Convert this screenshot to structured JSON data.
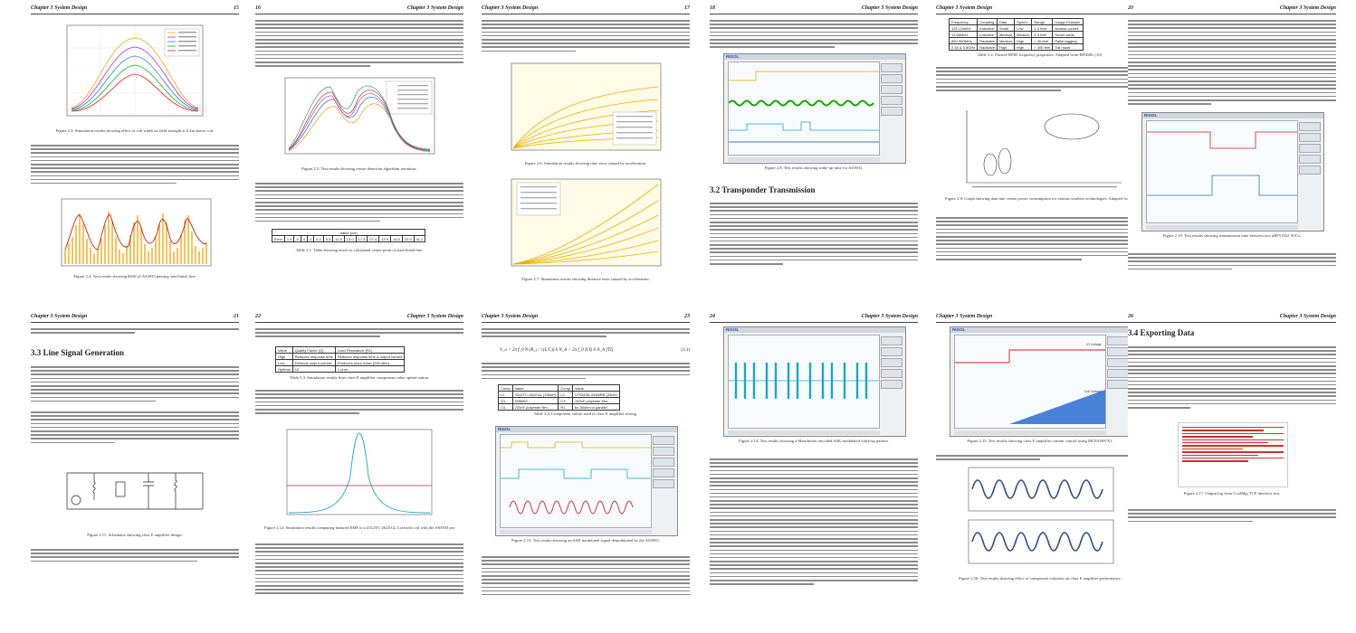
{
  "pages": [
    {
      "chapter": "Chapter 3 System Design",
      "number": "15",
      "figures": [
        {
          "id": "fig-2-3",
          "caption": "Figure 2.3: Simulation results showing effect of coil width on field strength at 0.4m above coil."
        },
        {
          "id": "fig-2-4",
          "caption": "Figure 2.4: Test results showing RSSI of AS3933 passing start/finish line."
        }
      ]
    },
    {
      "chapter": "16",
      "number": "Chapter 3 System Design",
      "figures": [
        {
          "id": "fig-2-5",
          "caption": "Figure 2.5: Test results showing centre detection algorithm iterations."
        }
      ],
      "table": {
        "header": [
          "Value (cm)"
        ],
        "row_label": "Error",
        "values": [
          "1.4",
          "4",
          "4",
          "4",
          "5.2",
          "5.5",
          "11.5",
          "13.0",
          "17.3",
          "27.4",
          "13.9",
          "14.5",
          "22.5",
          "41.2"
        ]
      },
      "table_caption": "Table 3.1: Table showing errors in calculated centre point of start/finish line."
    },
    {
      "chapter": "Chapter 3 System Design",
      "number": "17",
      "figures": [
        {
          "id": "fig-2-6",
          "caption": "Figure 2.6: Simulation results showing time error caused by acceleration."
        },
        {
          "id": "fig-2-7",
          "caption": "Figure 2.7: Simulation results showing distance error caused by acceleration."
        }
      ]
    },
    {
      "chapter": "18",
      "number": "Chapter 3 System Design",
      "figures": [
        {
          "id": "fig-2-8",
          "caption": "Figure 2.8: Test results showing wake-up time for AS3933."
        }
      ],
      "section": "3.2   Transponder Transmission"
    },
    {
      "chapter": "Chapter 3 System Design",
      "number": "19",
      "table": {
        "header": [
          "Frequency",
          "Coupling",
          "Data",
          "Speed",
          "Range",
          "Usage Example"
        ],
        "rows": [
          [
            "125-134kHz",
            "Inductive",
            "Small",
            "Low",
            "1-3 feet",
            "Access control"
          ],
          [
            "13.56MHz",
            "Inductive",
            "Medium",
            "Medium",
            "1-3 feet",
            "Smart cards"
          ],
          [
            "850-960MHz",
            "Radiative",
            "Medium",
            "High",
            "< 30 feet",
            "Pallet tagging"
          ],
          [
            "2.45 & 5.8GHz",
            "Radiative",
            "High",
            "High",
            "> 300 feet",
            "Toll roads"
          ]
        ]
      },
      "table_caption": "Table 3.2: Passive RFID frequency properties. Adapted from RFID4U [10].",
      "figures": [
        {
          "id": "fig-2-9",
          "caption": "Figure 2.9: Graph showing data rate versus power consumption for various wireless technologies. Adapted from [4]."
        }
      ]
    },
    {
      "chapter": "20",
      "number": "Chapter 3 System Design",
      "figures": [
        {
          "id": "fig-2-10",
          "caption": "Figure 2.10: Test results showing transmission time between two nRF51822 SOCs."
        }
      ]
    },
    {
      "chapter": "Chapter 3 System Design",
      "number": "21",
      "section": "3.3   Line Signal Generation",
      "figures": [
        {
          "id": "fig-2-11",
          "caption": "Figure 2.11: Schematic showing class E amplifier design."
        }
      ]
    },
    {
      "chapter": "22",
      "number": "Chapter 3 System Design",
      "table": {
        "header": [
          "Value",
          "Quality Factor (Q)",
          "Load Resistance (RL)"
        ],
        "rows": [
          [
            "High",
            "Reduces response time",
            "Reduces response time & output current"
          ],
          [
            "Low",
            "Defocus output current",
            "Produces more noise (S/N ratio)"
          ],
          [
            "Optimal",
            "10",
            "1 ohm"
          ]
        ]
      },
      "table_caption": "Table 3.3: Simulation results from class E amplifier component value optimi-sation.",
      "figures": [
        {
          "id": "fig-2-12",
          "caption": "Figure 2.12: Simulation results comparing induced EMF to a 4312TC-262XGL Coilcraft coil with the AS3933 sensitivity."
        }
      ]
    },
    {
      "chapter": "Chapter 3 System Design",
      "number": "23",
      "equation": "V_o = 2π f_0 N (R_c ∕ √(L/C)) S N_A − 2π f_0 N Q S N_A  [TI]",
      "equation_number": "(3.1)",
      "table": {
        "header": [
          "Comp",
          "Value",
          "Comp",
          "Value"
        ],
        "rows": [
          [
            "L1",
            "4312TC-262XGL (136uH)",
            "L2",
            "LPS6235-333MRB (33uH)"
          ],
          [
            "Q1",
            "2N6660",
            "C3",
            "150nF polyester film"
          ],
          [
            "C4",
            "220nF polyester film",
            "R1",
            "6x 39ohm in parallel"
          ]
        ]
      },
      "table_caption": "Table 3.4: Component values used in class E amplifier testing.",
      "figures": [
        {
          "id": "fig-2-13",
          "caption": "Figure 2.13: Test results showing an ASK modulated signal demodulated by the AS3933."
        }
      ]
    },
    {
      "chapter": "24",
      "number": "Chapter 3 System Design",
      "figures": [
        {
          "id": "fig-2-14",
          "caption": "Figure 2.14: Test results showing a Manchester encoded ASK modulated wake-up pattern."
        }
      ]
    },
    {
      "chapter": "Chapter 3 System Design",
      "number": "25",
      "figures": [
        {
          "id": "fig-2-15",
          "caption": "Figure 2.15: Test results showing class E amplifier current control using MCP41HVX1."
        },
        {
          "id": "fig-2-16",
          "caption": "Figure 2.16: Test results showing effect of component variation on class E amplifier performance."
        }
      ],
      "scope_labels": {
        "upper": "IO Voltage",
        "lower": "Coil Voltage"
      }
    },
    {
      "chapter": "26",
      "number": "Chapter 3 System Design",
      "section": "3.4   Exporting Data",
      "figures": [
        {
          "id": "fig-2-17",
          "caption": "Figure 2.17: Output log from CoolMgr TCP interface test."
        }
      ]
    }
  ],
  "scope_brand": "RIGOL",
  "colors": {
    "text_gray": "#8a8a8a",
    "scope_cyan": "#1aa7c9",
    "scope_yellow": "#e0c000",
    "scope_red": "#cc2020",
    "plot_orange": "#f0a000",
    "plot_blue": "#2a4c8a"
  }
}
